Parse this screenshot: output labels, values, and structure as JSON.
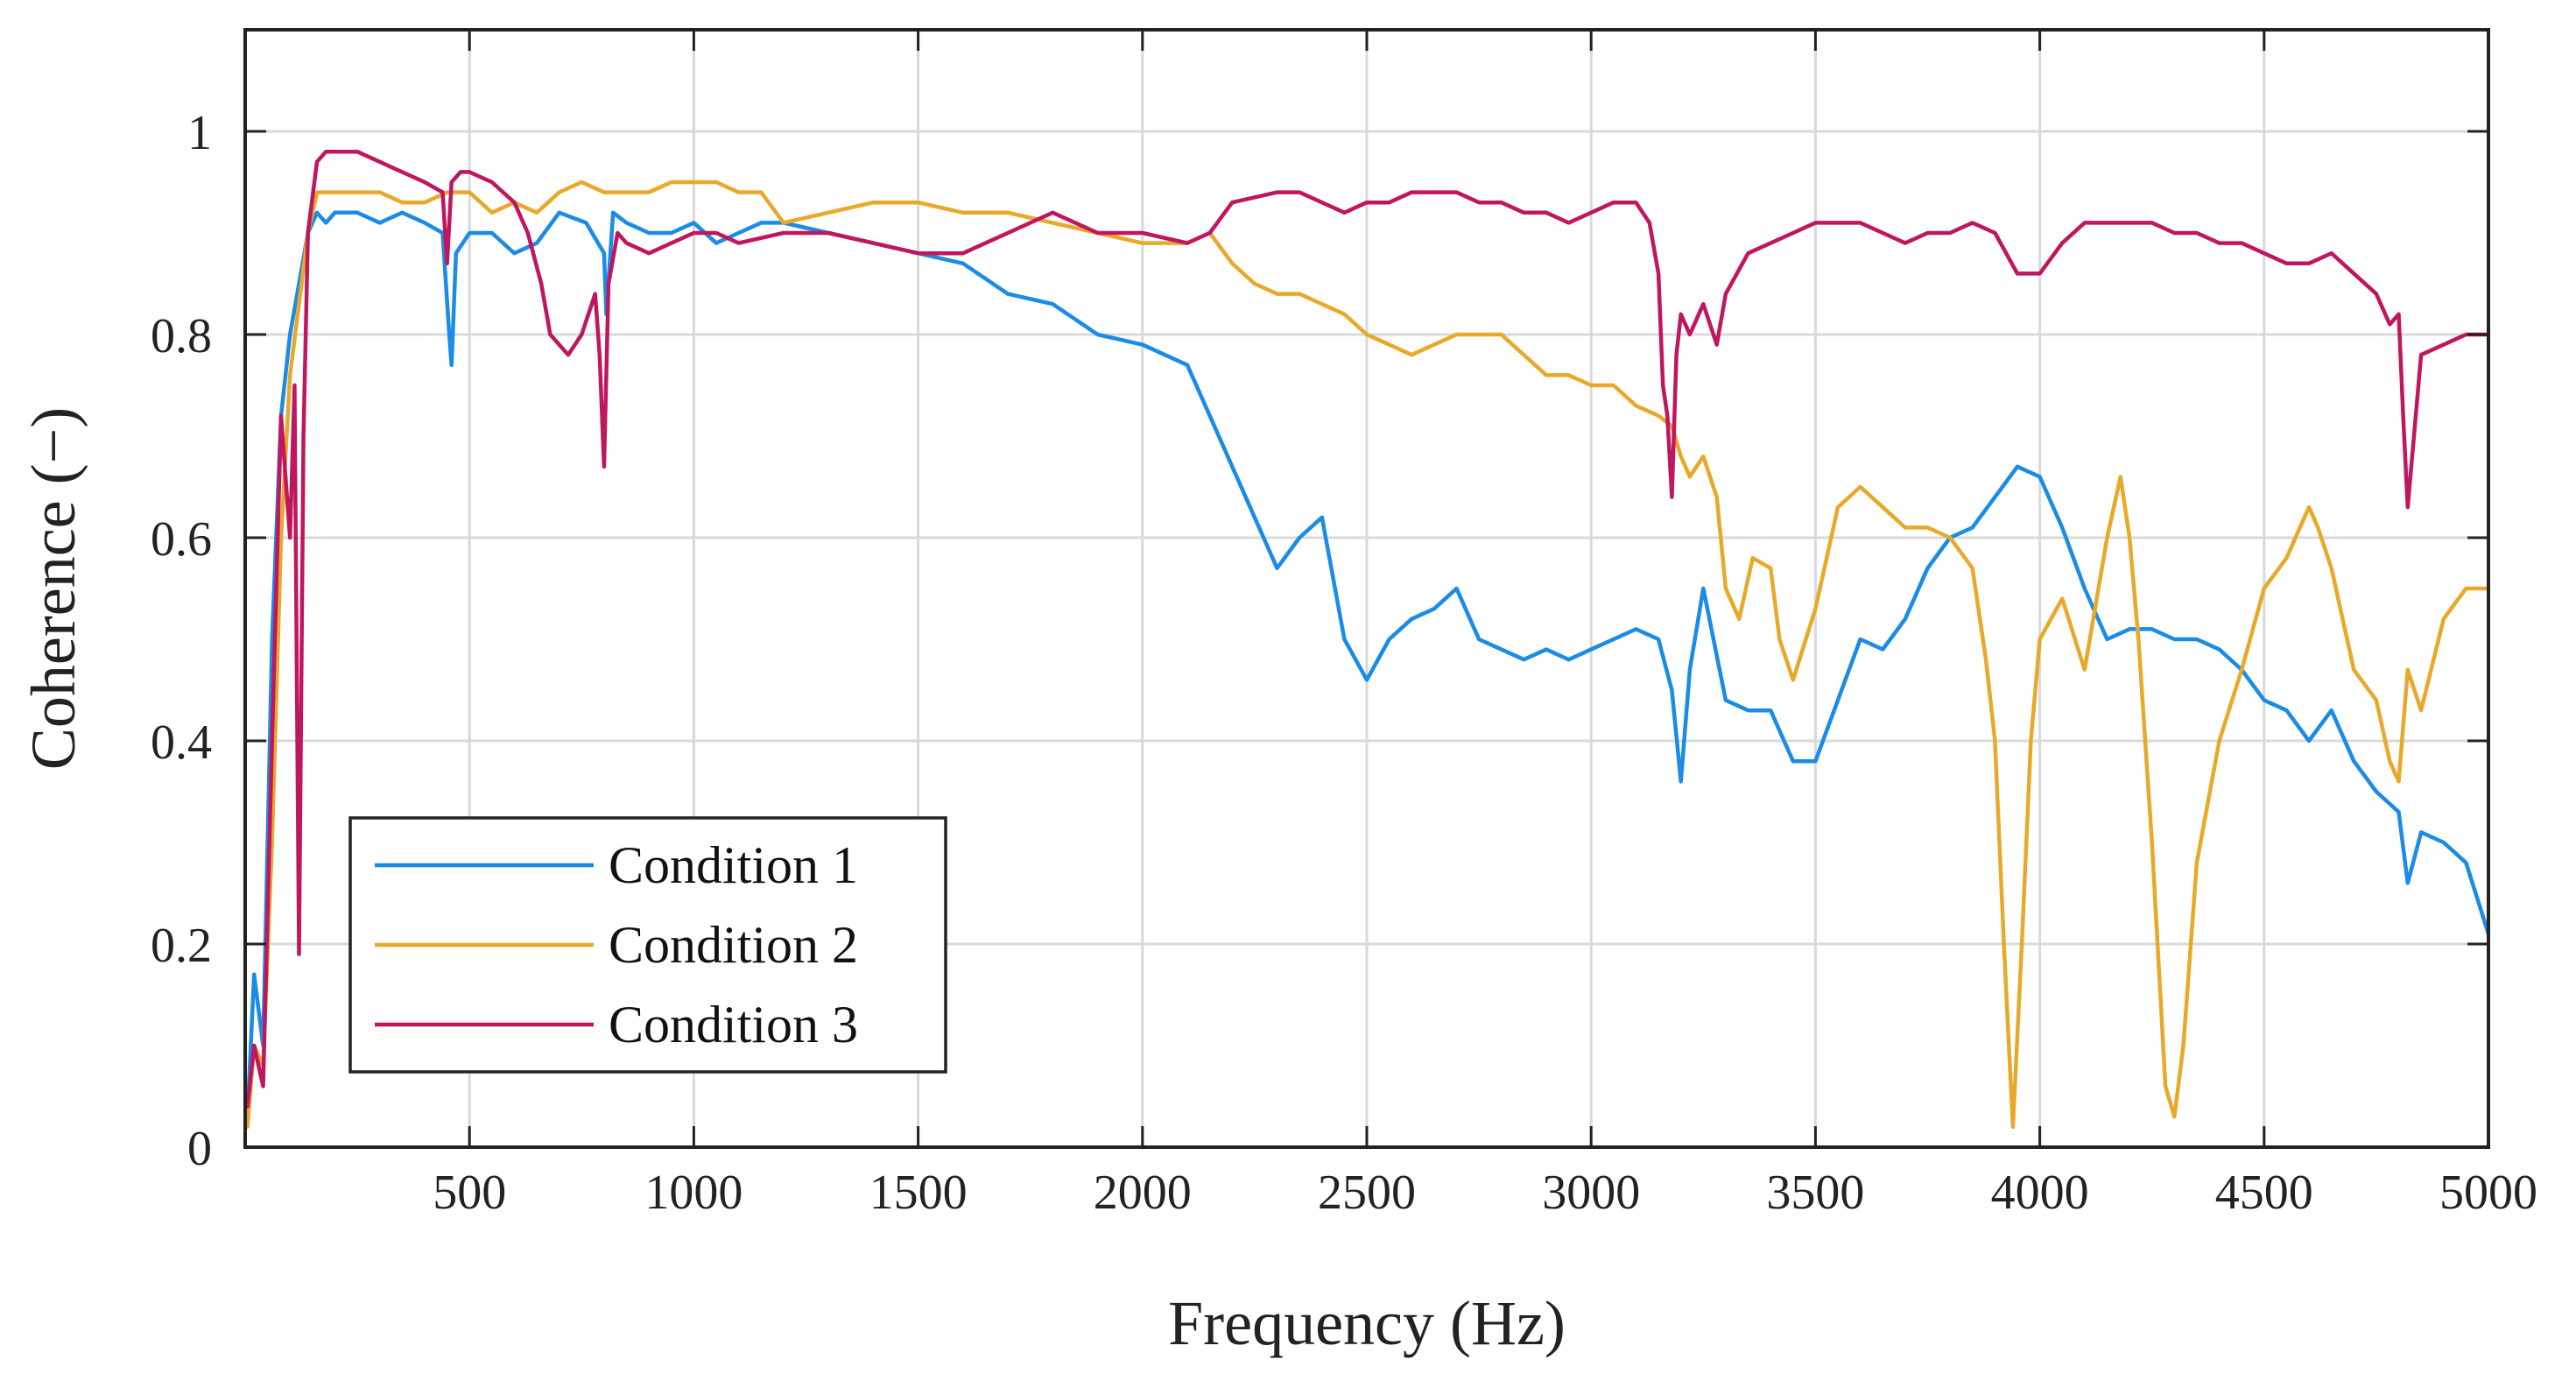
{
  "chart_data": {
    "type": "line",
    "title": "",
    "xlabel": "Frequency (Hz)",
    "ylabel": "Coherence (−)",
    "xlim": [
      0,
      5000
    ],
    "ylim": [
      0,
      1.1
    ],
    "xticks": [
      500,
      1000,
      1500,
      2000,
      2500,
      3000,
      3500,
      4000,
      4500,
      5000
    ],
    "xtick_labels": [
      "500",
      "1000",
      "1500",
      "2000",
      "2500",
      "3000",
      "3500",
      "4000",
      "4500",
      "5000"
    ],
    "yticks": [
      0,
      0.2,
      0.4,
      0.6,
      0.8,
      1
    ],
    "ytick_labels": [
      "0",
      "0.2",
      "0.4",
      "0.6",
      "0.8",
      "1"
    ],
    "grid": true,
    "legend_position": "bottom-left",
    "series": [
      {
        "name": "Condition 1",
        "color": "#1a8be6",
        "x": [
          5,
          20,
          40,
          60,
          80,
          100,
          120,
          140,
          160,
          180,
          200,
          250,
          300,
          350,
          400,
          440,
          455,
          460,
          470,
          500,
          550,
          600,
          650,
          700,
          760,
          800,
          805,
          820,
          850,
          900,
          950,
          1000,
          1050,
          1100,
          1150,
          1200,
          1300,
          1400,
          1500,
          1600,
          1700,
          1800,
          1900,
          2000,
          2050,
          2100,
          2150,
          2200,
          2250,
          2300,
          2350,
          2400,
          2450,
          2500,
          2550,
          2600,
          2650,
          2700,
          2750,
          2800,
          2850,
          2900,
          2950,
          3000,
          3050,
          3100,
          3150,
          3180,
          3200,
          3220,
          3250,
          3300,
          3350,
          3400,
          3450,
          3500,
          3550,
          3600,
          3650,
          3700,
          3750,
          3800,
          3850,
          3900,
          3950,
          4000,
          4050,
          4100,
          4150,
          4200,
          4250,
          4300,
          4350,
          4400,
          4450,
          4500,
          4550,
          4600,
          4650,
          4700,
          4750,
          4800,
          4820,
          4850,
          4900,
          4950,
          5000
        ],
        "y": [
          0.03,
          0.17,
          0.1,
          0.5,
          0.72,
          0.8,
          0.85,
          0.9,
          0.92,
          0.91,
          0.92,
          0.92,
          0.91,
          0.92,
          0.91,
          0.9,
          0.8,
          0.77,
          0.88,
          0.9,
          0.9,
          0.88,
          0.89,
          0.92,
          0.91,
          0.88,
          0.82,
          0.92,
          0.91,
          0.9,
          0.9,
          0.91,
          0.89,
          0.9,
          0.91,
          0.91,
          0.9,
          0.89,
          0.88,
          0.87,
          0.84,
          0.83,
          0.8,
          0.79,
          0.78,
          0.77,
          0.72,
          0.67,
          0.62,
          0.57,
          0.6,
          0.62,
          0.5,
          0.46,
          0.5,
          0.52,
          0.53,
          0.55,
          0.5,
          0.49,
          0.48,
          0.49,
          0.48,
          0.49,
          0.5,
          0.51,
          0.5,
          0.45,
          0.36,
          0.47,
          0.55,
          0.44,
          0.43,
          0.43,
          0.38,
          0.38,
          0.44,
          0.5,
          0.49,
          0.52,
          0.57,
          0.6,
          0.61,
          0.64,
          0.67,
          0.66,
          0.61,
          0.55,
          0.5,
          0.51,
          0.51,
          0.5,
          0.5,
          0.49,
          0.47,
          0.44,
          0.43,
          0.4,
          0.43,
          0.38,
          0.35,
          0.33,
          0.26,
          0.31,
          0.3,
          0.28,
          0.21
        ]
      },
      {
        "name": "Condition 2",
        "color": "#e8a92b",
        "x": [
          5,
          20,
          40,
          60,
          80,
          100,
          120,
          140,
          160,
          180,
          200,
          250,
          300,
          350,
          400,
          450,
          500,
          550,
          600,
          650,
          700,
          750,
          800,
          850,
          900,
          950,
          1000,
          1050,
          1100,
          1150,
          1200,
          1300,
          1400,
          1500,
          1600,
          1700,
          1800,
          1900,
          2000,
          2050,
          2100,
          2150,
          2200,
          2250,
          2300,
          2350,
          2400,
          2450,
          2500,
          2550,
          2600,
          2650,
          2700,
          2750,
          2800,
          2850,
          2900,
          2950,
          3000,
          3050,
          3100,
          3150,
          3180,
          3200,
          3220,
          3250,
          3280,
          3300,
          3330,
          3360,
          3400,
          3420,
          3450,
          3500,
          3550,
          3600,
          3650,
          3700,
          3750,
          3800,
          3850,
          3880,
          3900,
          3920,
          3940,
          3960,
          3980,
          4000,
          4050,
          4100,
          4150,
          4180,
          4200,
          4220,
          4250,
          4280,
          4300,
          4320,
          4350,
          4400,
          4450,
          4500,
          4550,
          4600,
          4620,
          4650,
          4700,
          4750,
          4780,
          4800,
          4820,
          4850,
          4900,
          4950,
          5000
        ],
        "y": [
          0.02,
          0.1,
          0.08,
          0.3,
          0.6,
          0.76,
          0.83,
          0.9,
          0.94,
          0.94,
          0.94,
          0.94,
          0.94,
          0.93,
          0.93,
          0.94,
          0.94,
          0.92,
          0.93,
          0.92,
          0.94,
          0.95,
          0.94,
          0.94,
          0.94,
          0.95,
          0.95,
          0.95,
          0.94,
          0.94,
          0.91,
          0.92,
          0.93,
          0.93,
          0.92,
          0.92,
          0.91,
          0.9,
          0.89,
          0.89,
          0.89,
          0.9,
          0.87,
          0.85,
          0.84,
          0.84,
          0.83,
          0.82,
          0.8,
          0.79,
          0.78,
          0.79,
          0.8,
          0.8,
          0.8,
          0.78,
          0.76,
          0.76,
          0.75,
          0.75,
          0.73,
          0.72,
          0.71,
          0.68,
          0.66,
          0.68,
          0.64,
          0.55,
          0.52,
          0.58,
          0.57,
          0.5,
          0.46,
          0.53,
          0.63,
          0.65,
          0.63,
          0.61,
          0.61,
          0.6,
          0.57,
          0.48,
          0.4,
          0.2,
          0.02,
          0.2,
          0.4,
          0.5,
          0.54,
          0.47,
          0.6,
          0.66,
          0.6,
          0.5,
          0.3,
          0.06,
          0.03,
          0.1,
          0.28,
          0.4,
          0.47,
          0.55,
          0.58,
          0.63,
          0.61,
          0.57,
          0.47,
          0.44,
          0.38,
          0.36,
          0.47,
          0.43,
          0.52,
          0.55,
          0.55
        ]
      },
      {
        "name": "Condition 3",
        "color": "#c0165e",
        "x": [
          5,
          20,
          40,
          60,
          80,
          100,
          110,
          120,
          130,
          140,
          160,
          180,
          200,
          250,
          300,
          350,
          400,
          440,
          450,
          460,
          480,
          500,
          550,
          600,
          630,
          660,
          680,
          700,
          720,
          750,
          780,
          790,
          800,
          810,
          830,
          850,
          900,
          950,
          1000,
          1050,
          1100,
          1200,
          1300,
          1400,
          1500,
          1600,
          1700,
          1800,
          1900,
          2000,
          2100,
          2150,
          2200,
          2300,
          2350,
          2400,
          2450,
          2500,
          2550,
          2600,
          2650,
          2700,
          2750,
          2800,
          2850,
          2900,
          2950,
          3000,
          3050,
          3100,
          3130,
          3150,
          3160,
          3170,
          3180,
          3190,
          3200,
          3220,
          3250,
          3280,
          3300,
          3350,
          3400,
          3450,
          3500,
          3550,
          3600,
          3650,
          3700,
          3750,
          3800,
          3850,
          3900,
          3950,
          4000,
          4050,
          4100,
          4150,
          4200,
          4250,
          4300,
          4350,
          4400,
          4450,
          4500,
          4550,
          4600,
          4650,
          4700,
          4750,
          4780,
          4800,
          4810,
          4820,
          4850,
          4900,
          4950,
          5000
        ],
        "y": [
          0.04,
          0.1,
          0.06,
          0.4,
          0.72,
          0.6,
          0.75,
          0.19,
          0.7,
          0.9,
          0.97,
          0.98,
          0.98,
          0.98,
          0.97,
          0.96,
          0.95,
          0.94,
          0.87,
          0.95,
          0.96,
          0.96,
          0.95,
          0.93,
          0.9,
          0.85,
          0.8,
          0.79,
          0.78,
          0.8,
          0.84,
          0.78,
          0.67,
          0.85,
          0.9,
          0.89,
          0.88,
          0.89,
          0.9,
          0.9,
          0.89,
          0.9,
          0.9,
          0.89,
          0.88,
          0.88,
          0.9,
          0.92,
          0.9,
          0.9,
          0.89,
          0.9,
          0.93,
          0.94,
          0.94,
          0.93,
          0.92,
          0.93,
          0.93,
          0.94,
          0.94,
          0.94,
          0.93,
          0.93,
          0.92,
          0.92,
          0.91,
          0.92,
          0.93,
          0.93,
          0.91,
          0.86,
          0.75,
          0.72,
          0.64,
          0.78,
          0.82,
          0.8,
          0.83,
          0.79,
          0.84,
          0.88,
          0.89,
          0.9,
          0.91,
          0.91,
          0.91,
          0.9,
          0.89,
          0.9,
          0.9,
          0.91,
          0.9,
          0.86,
          0.86,
          0.89,
          0.91,
          0.91,
          0.91,
          0.91,
          0.9,
          0.9,
          0.89,
          0.89,
          0.88,
          0.87,
          0.87,
          0.88,
          0.86,
          0.84,
          0.81,
          0.82,
          0.72,
          0.63,
          0.78,
          0.79,
          0.8,
          0.8
        ]
      }
    ]
  }
}
